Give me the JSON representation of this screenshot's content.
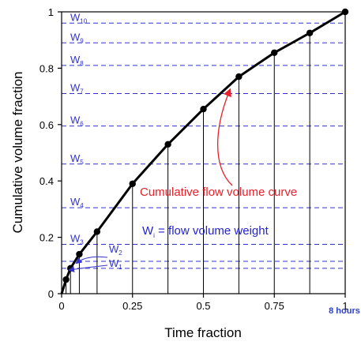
{
  "chart_data": {
    "type": "line",
    "xlabel": "Time fraction",
    "ylabel": "Cumulative volume fraction",
    "xlim": [
      0,
      1
    ],
    "ylim": [
      0,
      1
    ],
    "x_ticks": [
      "0",
      "0.25",
      "0.5",
      "0.75",
      "1"
    ],
    "y_ticks": [
      "0",
      "0.2",
      "0.4",
      "0.6",
      "0.8",
      "1"
    ],
    "x_end_note": "8 hours",
    "series": [
      {
        "x": [
          0,
          0.0156,
          0.0312,
          0.0625,
          0.125,
          0.25,
          0.375,
          0.5,
          0.625,
          0.75,
          0.875,
          1.0
        ],
        "y": [
          0,
          0.05,
          0.09,
          0.14,
          0.22,
          0.39,
          0.53,
          0.655,
          0.77,
          0.855,
          0.925,
          1.0
        ]
      }
    ],
    "vertical_lines_x": [
      0.0156,
      0.0312,
      0.0625,
      0.125,
      0.25,
      0.375,
      0.5,
      0.625,
      0.75,
      0.875
    ],
    "weights": [
      {
        "base": "W",
        "sub": "1",
        "y": 0.09
      },
      {
        "base": "W",
        "sub": "2",
        "y": 0.115
      },
      {
        "base": "W",
        "sub": "3",
        "y": 0.175
      },
      {
        "base": "W",
        "sub": "4",
        "y": 0.305
      },
      {
        "base": "W",
        "sub": "5",
        "y": 0.46
      },
      {
        "base": "W",
        "sub": "6",
        "y": 0.595
      },
      {
        "base": "W",
        "sub": "7",
        "y": 0.71
      },
      {
        "base": "W",
        "sub": "8",
        "y": 0.81
      },
      {
        "base": "W",
        "sub": "9",
        "y": 0.89
      },
      {
        "base": "W",
        "sub": "10",
        "y": 0.96
      }
    ],
    "annotations": {
      "curve_label": "Cumulative flow volume curve",
      "weight_label_base": "W",
      "weight_label_sub": "i",
      "weight_label_rest": " = flow volume weight"
    },
    "colors": {
      "curve": "#000000",
      "weight_lines": "#3333cc",
      "curve_label": "#e8202a",
      "weight_label": "#2424cc",
      "hours_note": "#2b3fc7"
    }
  }
}
